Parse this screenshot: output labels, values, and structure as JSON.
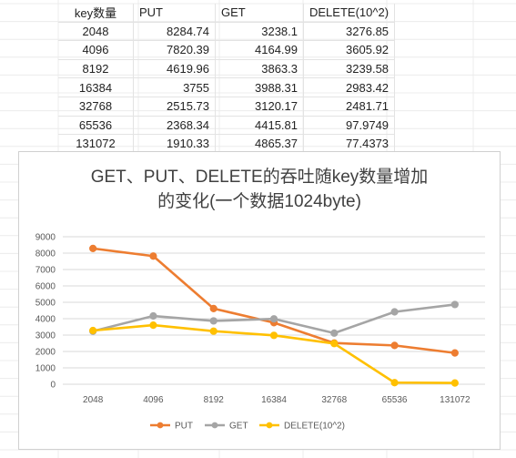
{
  "sheet": {
    "header": [
      "key数量",
      "PUT",
      "GET",
      "DELETE(10^2)"
    ],
    "rows": [
      [
        "2048",
        "8284.74",
        "3238.1",
        "3276.85"
      ],
      [
        "4096",
        "7820.39",
        "4164.99",
        "3605.92"
      ],
      [
        "8192",
        "4619.96",
        "3863.3",
        "3239.58"
      ],
      [
        "16384",
        "3755",
        "3988.31",
        "2983.42"
      ],
      [
        "32768",
        "2515.73",
        "3120.17",
        "2481.71"
      ],
      [
        "65536",
        "2368.34",
        "4415.81",
        "97.9749"
      ],
      [
        "131072",
        "1910.33",
        "4865.37",
        "77.4373"
      ]
    ]
  },
  "chart_data": {
    "type": "line",
    "title_line1": "GET、PUT、DELETE的吞吐随key数量增加",
    "title_line2": "的变化(一个数据1024byte)",
    "categories": [
      "2048",
      "4096",
      "8192",
      "16384",
      "32768",
      "65536",
      "131072"
    ],
    "series": [
      {
        "name": "PUT",
        "color": "#ED7D31",
        "values": [
          8284.74,
          7820.39,
          4619.96,
          3755,
          2515.73,
          2368.34,
          1910.33
        ]
      },
      {
        "name": "GET",
        "color": "#A5A5A5",
        "values": [
          3238.1,
          4164.99,
          3863.3,
          3988.31,
          3120.17,
          4415.81,
          4865.37
        ]
      },
      {
        "name": "DELETE(10^2)",
        "color": "#FFC000",
        "values": [
          3276.85,
          3605.92,
          3239.58,
          2983.42,
          2481.71,
          97.9749,
          77.4373
        ]
      }
    ],
    "yticks": [
      "0",
      "1000",
      "2000",
      "3000",
      "4000",
      "5000",
      "6000",
      "7000",
      "8000",
      "9000"
    ],
    "ylim": [
      0,
      9000
    ],
    "grid": true,
    "legend": "bottom"
  }
}
